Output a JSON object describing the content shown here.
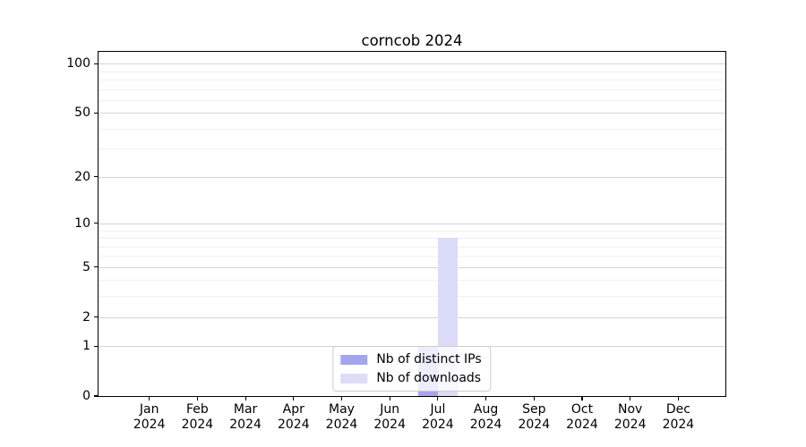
{
  "chart_data": {
    "type": "bar",
    "title": "corncob 2024",
    "categories": [
      "Jan 2024",
      "Feb 2024",
      "Mar 2024",
      "Apr 2024",
      "May 2024",
      "Jun 2024",
      "Jul 2024",
      "Aug 2024",
      "Sep 2024",
      "Oct 2024",
      "Nov 2024",
      "Dec 2024"
    ],
    "series": [
      {
        "name": "Nb of distinct IPs",
        "color": "#a5a5ef",
        "values": [
          0,
          0,
          0,
          0,
          0,
          0,
          1,
          0,
          0,
          0,
          0,
          0
        ]
      },
      {
        "name": "Nb of downloads",
        "color": "#dcdcf8",
        "values": [
          0,
          0,
          0,
          0,
          0,
          0,
          8,
          0,
          0,
          0,
          0,
          0
        ]
      }
    ],
    "xlabel": "",
    "ylabel": "",
    "yscale": "log1p",
    "ylim": [
      0,
      118
    ],
    "y_major_ticks": [
      0,
      1,
      2,
      5,
      10,
      20,
      50,
      100
    ],
    "y_minor_ticks": [
      3,
      4,
      6,
      7,
      8,
      9,
      30,
      40,
      60,
      70,
      80,
      90
    ],
    "grid": true,
    "legend_position": "lower center",
    "colors": {
      "background": "#ffffff",
      "spine": "#000000",
      "major_grid": "#d4d4d4",
      "minor_grid": "#f0f0f0",
      "text": "#000000"
    }
  }
}
